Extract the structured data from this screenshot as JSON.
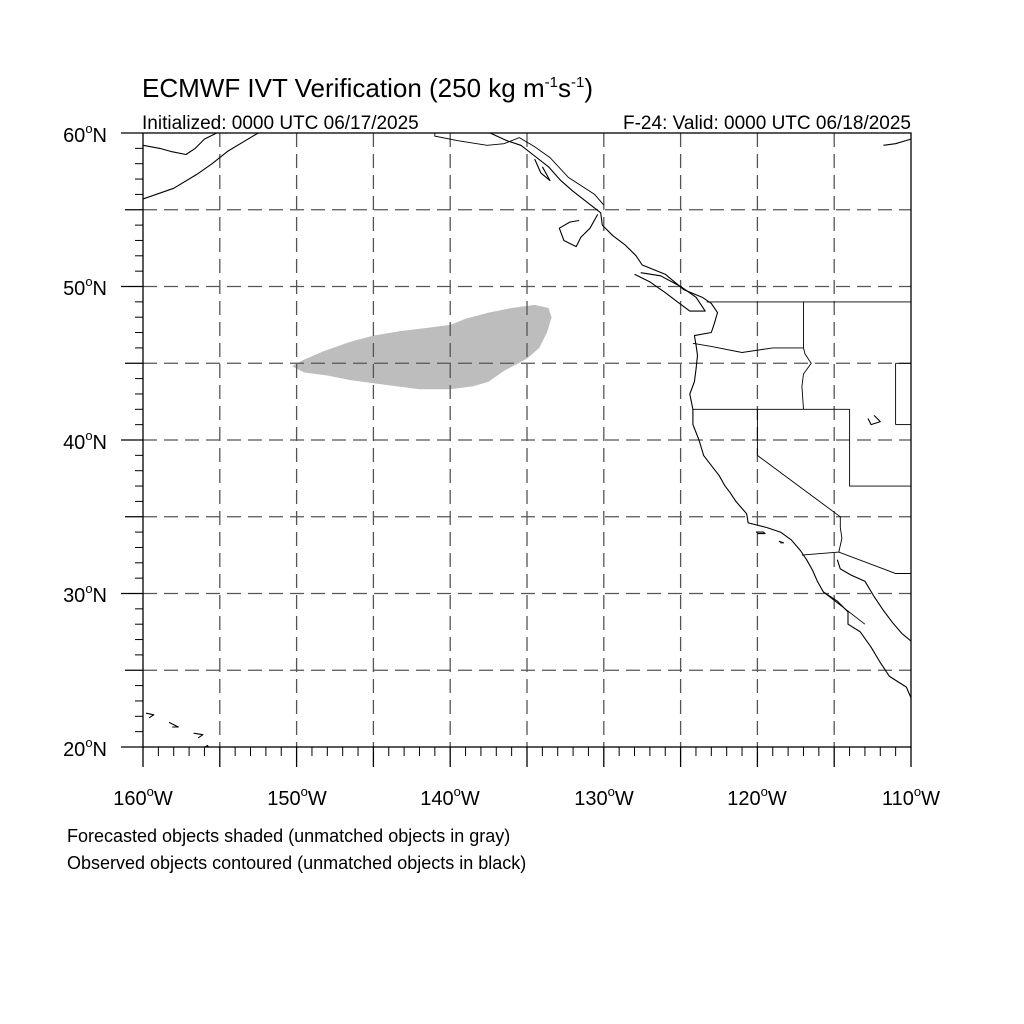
{
  "title": {
    "main": "ECMWF IVT Verification (250 kg m",
    "exp1": "-1",
    "mid": "s",
    "exp2": "-1",
    "end": ")"
  },
  "init_text": "Initialized: 0000 UTC 06/17/2025",
  "valid_text": "F-24: Valid: 0000 UTC 06/18/2025",
  "lat_labels": [
    {
      "deg": "60",
      "hem": "N"
    },
    {
      "deg": "50",
      "hem": "N"
    },
    {
      "deg": "40",
      "hem": "N"
    },
    {
      "deg": "30",
      "hem": "N"
    },
    {
      "deg": "20",
      "hem": "N"
    }
  ],
  "lon_labels": [
    {
      "deg": "160",
      "hem": "W"
    },
    {
      "deg": "150",
      "hem": "W"
    },
    {
      "deg": "140",
      "hem": "W"
    },
    {
      "deg": "130",
      "hem": "W"
    },
    {
      "deg": "120",
      "hem": "W"
    },
    {
      "deg": "110",
      "hem": "W"
    }
  ],
  "captions": {
    "line1": "Forecasted objects shaded (unmatched objects in gray)",
    "line2": "Observed objects contoured (unmatched objects in black)"
  },
  "colors": {
    "unmatched_forecast": "#bdbdbd",
    "grid": "#555555",
    "coast": "#000000"
  },
  "map_extent": {
    "lon": [
      -160,
      -110
    ],
    "lat": [
      20,
      60
    ]
  },
  "forecast_objects": [
    {
      "name": "unmatched-forecast-object",
      "polygon_lonlat": [
        [
          -150.3,
          44.8
        ],
        [
          -149.6,
          45.2
        ],
        [
          -148.2,
          45.8
        ],
        [
          -146.5,
          46.4
        ],
        [
          -145.0,
          46.8
        ],
        [
          -143.2,
          47.1
        ],
        [
          -141.5,
          47.3
        ],
        [
          -140.0,
          47.5
        ],
        [
          -139.0,
          47.9
        ],
        [
          -137.5,
          48.3
        ],
        [
          -136.0,
          48.6
        ],
        [
          -134.5,
          48.8
        ],
        [
          -133.6,
          48.6
        ],
        [
          -133.4,
          48.0
        ],
        [
          -133.7,
          47.0
        ],
        [
          -134.2,
          46.0
        ],
        [
          -135.0,
          45.3
        ],
        [
          -136.5,
          44.5
        ],
        [
          -137.5,
          43.8
        ],
        [
          -138.5,
          43.5
        ],
        [
          -140.0,
          43.3
        ],
        [
          -142.0,
          43.3
        ],
        [
          -143.5,
          43.5
        ],
        [
          -145.0,
          43.7
        ],
        [
          -146.5,
          43.9
        ],
        [
          -148.0,
          44.2
        ],
        [
          -149.5,
          44.4
        ]
      ]
    }
  ],
  "coastlines_lonlat": [
    [
      [
        -160,
        55.7
      ],
      [
        -158.0,
        56.4
      ],
      [
        -156.5,
        57.3
      ],
      [
        -155.5,
        58.0
      ],
      [
        -154.5,
        58.8
      ],
      [
        -153.5,
        59.4
      ],
      [
        -152.5,
        60
      ]
    ],
    [
      [
        -160,
        59.2
      ],
      [
        -158.9,
        59.0
      ],
      [
        -158.2,
        58.8
      ],
      [
        -157.2,
        58.6
      ],
      [
        -156.6,
        59.0
      ],
      [
        -156.0,
        59.6
      ],
      [
        -155.2,
        60
      ]
    ],
    [
      [
        -137.4,
        60
      ],
      [
        -136.3,
        59.5
      ],
      [
        -135.4,
        59.2
      ],
      [
        -134.5,
        58.5
      ],
      [
        -133.6,
        57.8
      ],
      [
        -132.8,
        56.9
      ],
      [
        -132.0,
        56.2
      ],
      [
        -131.1,
        55.5
      ],
      [
        -130.2,
        54.8
      ],
      [
        -130.1,
        54.0
      ],
      [
        -129.4,
        53.3
      ],
      [
        -128.6,
        52.7
      ],
      [
        -127.9,
        52.0
      ],
      [
        -127.5,
        51.4
      ],
      [
        -126.0,
        50.8
      ],
      [
        -124.8,
        49.8
      ],
      [
        -123.6,
        49.3
      ],
      [
        -123.0,
        48.9
      ],
      [
        -122.6,
        48.3
      ],
      [
        -122.8,
        47.6
      ],
      [
        -123.0,
        47.0
      ],
      [
        -124.1,
        46.8
      ],
      [
        -124.0,
        46.2
      ],
      [
        -123.9,
        45.5
      ],
      [
        -124.0,
        44.6
      ],
      [
        -124.1,
        43.8
      ],
      [
        -124.4,
        43.0
      ],
      [
        -124.2,
        42.0
      ],
      [
        -124.2,
        41.0
      ],
      [
        -123.8,
        40.0
      ],
      [
        -123.5,
        39.0
      ],
      [
        -122.9,
        38.2
      ],
      [
        -122.5,
        37.7
      ],
      [
        -122.1,
        37.0
      ],
      [
        -121.8,
        36.6
      ],
      [
        -121.4,
        36.0
      ],
      [
        -120.7,
        35.2
      ],
      [
        -120.6,
        34.6
      ],
      [
        -119.4,
        34.3
      ],
      [
        -118.5,
        34.0
      ],
      [
        -117.8,
        33.5
      ],
      [
        -117.2,
        32.8
      ],
      [
        -116.8,
        32.2
      ],
      [
        -116.4,
        31.5
      ],
      [
        -116.1,
        30.8
      ],
      [
        -115.7,
        30.1
      ],
      [
        -114.8,
        29.5
      ],
      [
        -114.1,
        28.8
      ],
      [
        -114.1,
        28.0
      ],
      [
        -113.3,
        27.5
      ],
      [
        -112.6,
        26.5
      ],
      [
        -112.0,
        25.5
      ],
      [
        -111.4,
        24.6
      ],
      [
        -110.3,
        23.9
      ],
      [
        -110,
        23.2
      ]
    ],
    [
      [
        -114.8,
        32.2
      ],
      [
        -114.6,
        31.6
      ],
      [
        -113.9,
        31.2
      ],
      [
        -113.0,
        30.8
      ],
      [
        -112.4,
        29.8
      ],
      [
        -111.8,
        28.9
      ],
      [
        -111.2,
        28.1
      ],
      [
        -110.6,
        27.4
      ],
      [
        -110,
        26.9
      ]
    ],
    [
      [
        -130.4,
        54.7
      ],
      [
        -130.9,
        53.8
      ],
      [
        -131.5,
        53.2
      ],
      [
        -131.8,
        52.6
      ],
      [
        -132.6,
        53.0
      ],
      [
        -132.9,
        53.8
      ],
      [
        -132.2,
        54.2
      ],
      [
        -131.6,
        54.3
      ]
    ],
    [
      [
        -128.0,
        50.8
      ],
      [
        -127.0,
        50.3
      ],
      [
        -126.0,
        49.6
      ],
      [
        -125.2,
        49.0
      ],
      [
        -124.4,
        48.4
      ],
      [
        -123.4,
        48.4
      ],
      [
        -124.0,
        49.3
      ],
      [
        -125.0,
        50.0
      ],
      [
        -126.3,
        50.7
      ],
      [
        -127.6,
        50.9
      ]
    ],
    [
      [
        -120.1,
        34.0
      ],
      [
        -119.6,
        34.0
      ],
      [
        -119.5,
        33.9
      ],
      [
        -120.0,
        33.9
      ]
    ],
    [
      [
        -118.6,
        33.4
      ],
      [
        -118.3,
        33.3
      ],
      [
        -118.5,
        33.3
      ]
    ],
    [
      [
        -156.1,
        19.9
      ],
      [
        -155.8,
        20.1
      ],
      [
        -155.5,
        19.6
      ],
      [
        -155.9,
        19.4
      ]
    ],
    [
      [
        -156.7,
        20.9
      ],
      [
        -156.1,
        20.8
      ],
      [
        -156.4,
        20.6
      ]
    ],
    [
      [
        -158.3,
        21.6
      ],
      [
        -157.7,
        21.3
      ],
      [
        -158.1,
        21.3
      ]
    ],
    [
      [
        -159.8,
        22.2
      ],
      [
        -159.3,
        22.1
      ],
      [
        -159.6,
        21.9
      ]
    ],
    [
      [
        -112.4,
        41.6
      ],
      [
        -112.0,
        41.2
      ],
      [
        -112.6,
        41.0
      ],
      [
        -112.8,
        41.4
      ]
    ],
    [
      [
        -110,
        59.6
      ],
      [
        -111.0,
        59.3
      ],
      [
        -111.8,
        59.2
      ]
    ],
    [
      [
        -134.5,
        58.3
      ],
      [
        -134.1,
        57.4
      ],
      [
        -133.5,
        56.9
      ],
      [
        -134.0,
        57.8
      ]
    ]
  ],
  "borders_lonlat": [
    [
      [
        -141.0,
        60
      ],
      [
        -141.0,
        59.8
      ],
      [
        -139.5,
        59.5
      ],
      [
        -137.6,
        59.2
      ],
      [
        -136.5,
        59.3
      ],
      [
        -135.5,
        59.7
      ],
      [
        -134.5,
        59.1
      ],
      [
        -133.5,
        58.4
      ],
      [
        -132.3,
        57.1
      ],
      [
        -130.6,
        56.0
      ],
      [
        -130.0,
        55.3
      ]
    ],
    [
      [
        -123.3,
        49.0
      ],
      [
        -110,
        49.0
      ]
    ],
    [
      [
        -117.0,
        49.0
      ],
      [
        -117.0,
        46.0
      ],
      [
        -116.9,
        45.6
      ],
      [
        -116.5,
        45.0
      ],
      [
        -117.0,
        44.3
      ],
      [
        -117.1,
        43.5
      ],
      [
        -117.0,
        42.0
      ]
    ],
    [
      [
        -124.2,
        46.3
      ],
      [
        -123.0,
        46.1
      ],
      [
        -121.0,
        45.7
      ],
      [
        -119.0,
        46.0
      ],
      [
        -117.0,
        46.0
      ]
    ],
    [
      [
        -124.2,
        42.0
      ],
      [
        -114.0,
        42.0
      ]
    ],
    [
      [
        -120.0,
        42.0
      ],
      [
        -120.0,
        39.0
      ],
      [
        -114.6,
        35.0
      ],
      [
        -114.6,
        34.3
      ],
      [
        -114.5,
        33.6
      ],
      [
        -114.7,
        32.7
      ]
    ],
    [
      [
        -114.0,
        42.0
      ],
      [
        -114.0,
        37.0
      ],
      [
        -110,
        37.0
      ]
    ],
    [
      [
        -117.1,
        32.5
      ],
      [
        -114.7,
        32.7
      ],
      [
        -111.0,
        31.3
      ],
      [
        -110,
        31.3
      ]
    ],
    [
      [
        -111.0,
        45.0
      ],
      [
        -110,
        45.0
      ]
    ],
    [
      [
        -111.0,
        41.0
      ],
      [
        -110,
        41.0
      ]
    ],
    [
      [
        -111.0,
        45.0
      ],
      [
        -111.0,
        41.0
      ]
    ],
    [
      [
        -115.7,
        30.1
      ],
      [
        -113.0,
        28.0
      ]
    ]
  ]
}
